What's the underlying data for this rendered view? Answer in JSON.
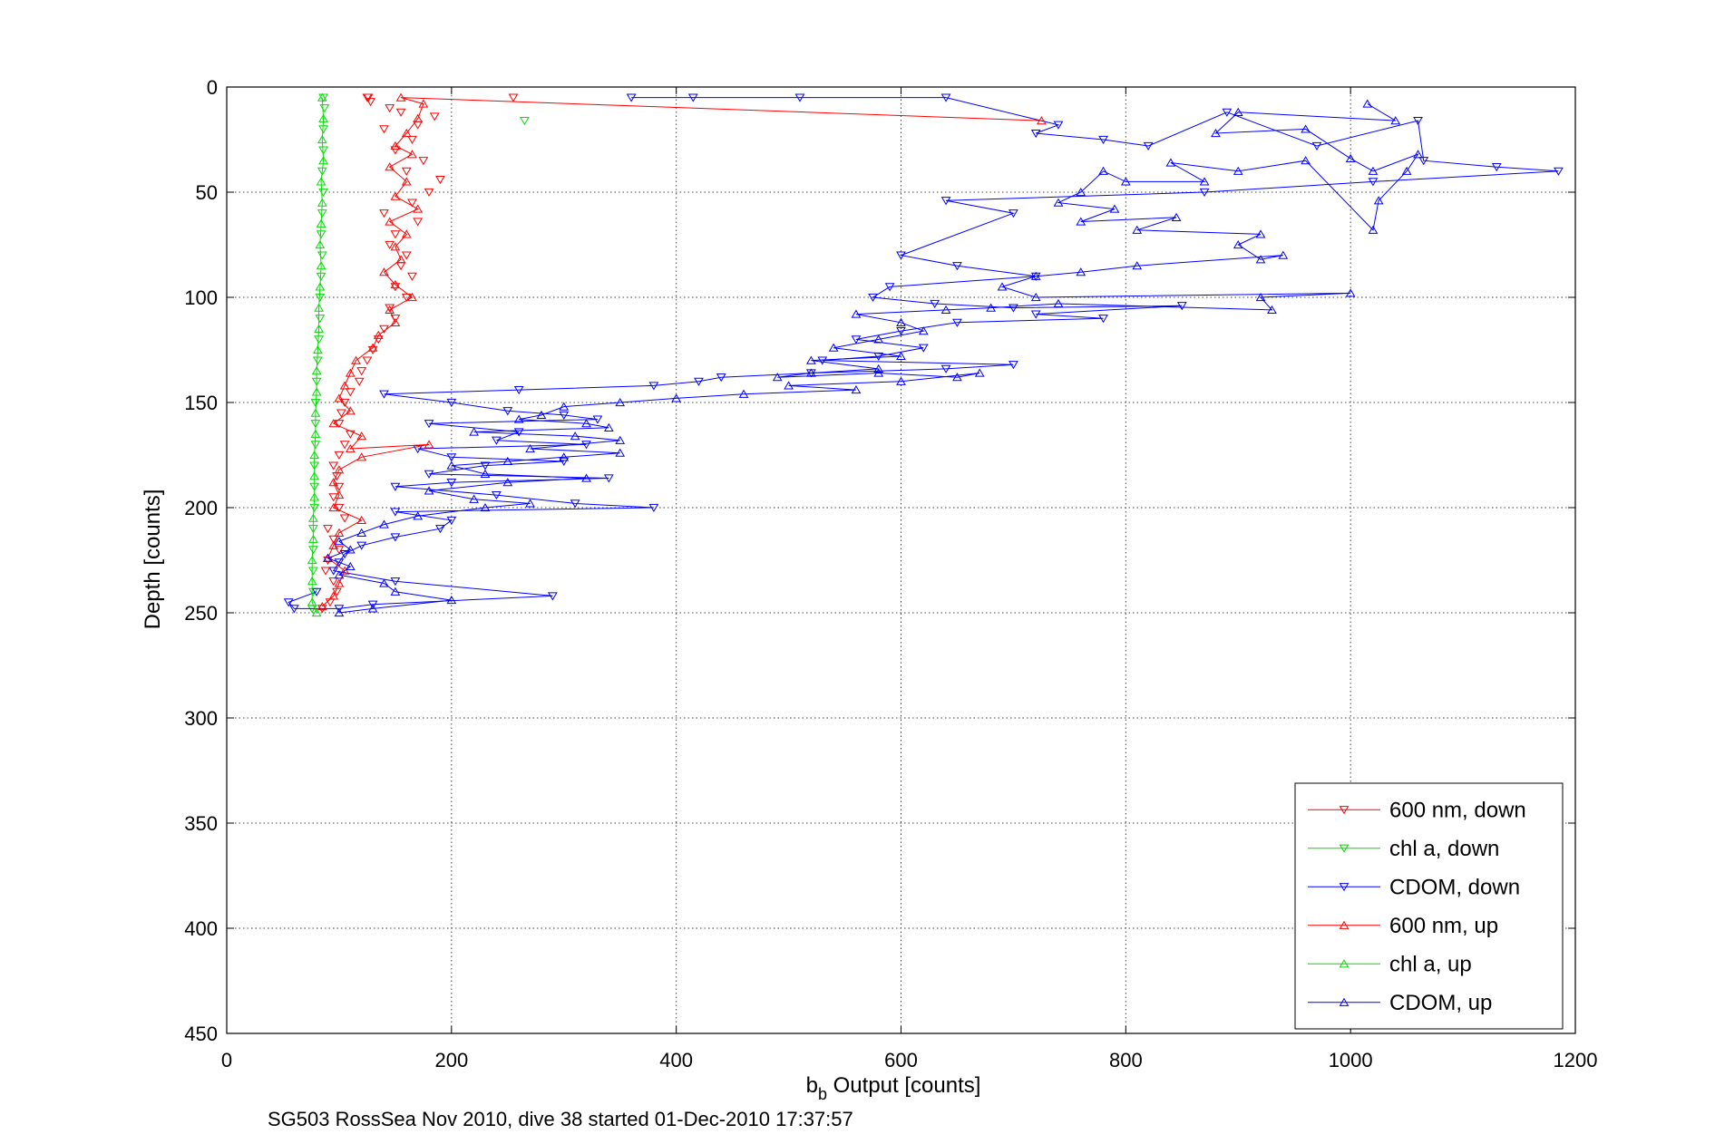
{
  "chart_data": {
    "type": "scatter",
    "title": "",
    "xlabel_main": "b",
    "xlabel_sub": "b",
    "xlabel_rest": " Output [counts]",
    "ylabel": "Depth [counts]",
    "caption": "SG503 RossSea Nov 2010, dive 38 started 01-Dec-2010 17:37:57",
    "xlim": [
      0,
      1200
    ],
    "ylim": [
      0,
      450
    ],
    "y_reversed": true,
    "grid": true,
    "grid_style": "dotted",
    "xticks": [
      "0",
      "200",
      "400",
      "600",
      "800",
      "1000",
      "1200"
    ],
    "yticks": [
      "0",
      "50",
      "100",
      "150",
      "200",
      "250",
      "300",
      "350",
      "400",
      "450"
    ],
    "legend_position": "bottom-right",
    "series": [
      {
        "name": "600 nm, down",
        "color": "#ff0000",
        "marker": "triangle-down",
        "line": false,
        "points": [
          [
            125,
            5
          ],
          [
            255,
            5
          ],
          [
            126,
            5
          ],
          [
            128,
            7
          ],
          [
            185,
            14
          ],
          [
            170,
            18
          ],
          [
            155,
            12
          ],
          [
            145,
            10
          ],
          [
            140,
            20
          ],
          [
            165,
            25
          ],
          [
            150,
            30
          ],
          [
            175,
            35
          ],
          [
            160,
            40
          ],
          [
            190,
            44
          ],
          [
            180,
            50
          ],
          [
            165,
            55
          ],
          [
            140,
            60
          ],
          [
            170,
            64
          ],
          [
            150,
            70
          ],
          [
            145,
            75
          ],
          [
            160,
            80
          ],
          [
            155,
            85
          ],
          [
            165,
            90
          ],
          [
            150,
            95
          ],
          [
            160,
            100
          ],
          [
            145,
            105
          ],
          [
            150,
            110
          ],
          [
            140,
            115
          ],
          [
            135,
            120
          ],
          [
            130,
            125
          ],
          [
            125,
            130
          ],
          [
            120,
            135
          ],
          [
            118,
            140
          ],
          [
            110,
            145
          ],
          [
            105,
            150
          ],
          [
            102,
            155
          ],
          [
            100,
            160
          ],
          [
            110,
            165
          ],
          [
            105,
            170
          ],
          [
            100,
            175
          ],
          [
            95,
            180
          ],
          [
            98,
            185
          ],
          [
            100,
            190
          ],
          [
            95,
            195
          ],
          [
            100,
            200
          ],
          [
            105,
            205
          ],
          [
            90,
            210
          ],
          [
            95,
            215
          ],
          [
            100,
            220
          ],
          [
            90,
            225
          ],
          [
            88,
            230
          ],
          [
            95,
            235
          ],
          [
            98,
            240
          ],
          [
            92,
            245
          ],
          [
            85,
            248
          ]
        ]
      },
      {
        "name": "chl a, down",
        "color": "#00dd00",
        "marker": "triangle-down",
        "line": false,
        "points": [
          [
            86,
            5
          ],
          [
            265,
            16
          ],
          [
            87,
            10
          ],
          [
            86,
            20
          ],
          [
            86,
            30
          ],
          [
            85,
            40
          ],
          [
            86,
            50
          ],
          [
            85,
            60
          ],
          [
            84,
            70
          ],
          [
            85,
            80
          ],
          [
            84,
            90
          ],
          [
            83,
            100
          ],
          [
            83,
            110
          ],
          [
            82,
            120
          ],
          [
            81,
            130
          ],
          [
            80,
            140
          ],
          [
            79,
            150
          ],
          [
            79,
            160
          ],
          [
            79,
            170
          ],
          [
            78,
            180
          ],
          [
            78,
            190
          ],
          [
            78,
            200
          ],
          [
            77,
            210
          ],
          [
            77,
            220
          ],
          [
            77,
            230
          ],
          [
            77,
            240
          ],
          [
            76,
            248
          ]
        ]
      },
      {
        "name": "CDOM, down",
        "color": "#0000ff",
        "marker": "triangle-down",
        "line": true,
        "points": [
          [
            360,
            5
          ],
          [
            415,
            5
          ],
          [
            510,
            5
          ],
          [
            640,
            5
          ],
          [
            740,
            18
          ],
          [
            720,
            22
          ],
          [
            780,
            25
          ],
          [
            820,
            28
          ],
          [
            890,
            12
          ],
          [
            970,
            28
          ],
          [
            1060,
            16
          ],
          [
            1065,
            35
          ],
          [
            1130,
            38
          ],
          [
            1185,
            40
          ],
          [
            1020,
            45
          ],
          [
            870,
            50
          ],
          [
            640,
            54
          ],
          [
            700,
            60
          ],
          [
            600,
            80
          ],
          [
            650,
            85
          ],
          [
            720,
            90
          ],
          [
            590,
            95
          ],
          [
            575,
            100
          ],
          [
            630,
            103
          ],
          [
            700,
            105
          ],
          [
            850,
            104
          ],
          [
            720,
            108
          ],
          [
            780,
            110
          ],
          [
            650,
            112
          ],
          [
            600,
            116
          ],
          [
            560,
            120
          ],
          [
            620,
            124
          ],
          [
            580,
            128
          ],
          [
            530,
            130
          ],
          [
            700,
            132
          ],
          [
            640,
            134
          ],
          [
            520,
            136
          ],
          [
            440,
            138
          ],
          [
            420,
            140
          ],
          [
            380,
            142
          ],
          [
            260,
            144
          ],
          [
            140,
            146
          ],
          [
            200,
            150
          ],
          [
            250,
            154
          ],
          [
            300,
            156
          ],
          [
            330,
            158
          ],
          [
            180,
            160
          ],
          [
            260,
            164
          ],
          [
            240,
            168
          ],
          [
            320,
            170
          ],
          [
            170,
            172
          ],
          [
            200,
            176
          ],
          [
            300,
            178
          ],
          [
            230,
            180
          ],
          [
            180,
            184
          ],
          [
            340,
            186
          ],
          [
            200,
            188
          ],
          [
            150,
            190
          ],
          [
            240,
            194
          ],
          [
            310,
            198
          ],
          [
            380,
            200
          ],
          [
            150,
            202
          ],
          [
            200,
            206
          ],
          [
            190,
            210
          ],
          [
            150,
            214
          ],
          [
            120,
            218
          ],
          [
            105,
            222
          ],
          [
            100,
            226
          ],
          [
            95,
            230
          ],
          [
            150,
            235
          ],
          [
            290,
            242
          ],
          [
            130,
            246
          ],
          [
            100,
            248
          ],
          [
            60,
            248
          ],
          [
            55,
            245
          ],
          [
            80,
            240
          ]
        ]
      },
      {
        "name": "600 nm, up",
        "color": "#ff0000",
        "marker": "triangle-up",
        "line": true,
        "points": [
          [
            725,
            16
          ],
          [
            155,
            5
          ],
          [
            175,
            8
          ],
          [
            170,
            15
          ],
          [
            160,
            22
          ],
          [
            150,
            28
          ],
          [
            165,
            32
          ],
          [
            145,
            38
          ],
          [
            160,
            45
          ],
          [
            150,
            52
          ],
          [
            170,
            58
          ],
          [
            145,
            64
          ],
          [
            160,
            70
          ],
          [
            150,
            76
          ],
          [
            155,
            82
          ],
          [
            140,
            88
          ],
          [
            150,
            94
          ],
          [
            165,
            100
          ],
          [
            145,
            106
          ],
          [
            150,
            112
          ],
          [
            135,
            118
          ],
          [
            130,
            124
          ],
          [
            115,
            130
          ],
          [
            110,
            136
          ],
          [
            105,
            142
          ],
          [
            100,
            148
          ],
          [
            110,
            154
          ],
          [
            95,
            160
          ],
          [
            120,
            166
          ],
          [
            110,
            172
          ],
          [
            180,
            170
          ],
          [
            120,
            176
          ],
          [
            100,
            182
          ],
          [
            95,
            188
          ],
          [
            100,
            194
          ],
          [
            95,
            200
          ],
          [
            120,
            206
          ],
          [
            100,
            212
          ],
          [
            95,
            218
          ],
          [
            90,
            224
          ],
          [
            105,
            230
          ],
          [
            100,
            236
          ],
          [
            95,
            242
          ],
          [
            85,
            247
          ]
        ]
      },
      {
        "name": "chl a, up",
        "color": "#00dd00",
        "marker": "triangle-up",
        "line": true,
        "points": [
          [
            85,
            5
          ],
          [
            86,
            15
          ],
          [
            85,
            25
          ],
          [
            86,
            35
          ],
          [
            84,
            45
          ],
          [
            85,
            55
          ],
          [
            84,
            65
          ],
          [
            83,
            75
          ],
          [
            84,
            85
          ],
          [
            83,
            95
          ],
          [
            82,
            105
          ],
          [
            82,
            115
          ],
          [
            81,
            125
          ],
          [
            80,
            135
          ],
          [
            80,
            145
          ],
          [
            79,
            155
          ],
          [
            79,
            165
          ],
          [
            78,
            175
          ],
          [
            78,
            185
          ],
          [
            78,
            195
          ],
          [
            77,
            205
          ],
          [
            77,
            215
          ],
          [
            76,
            225
          ],
          [
            76,
            235
          ],
          [
            76,
            245
          ],
          [
            80,
            250
          ]
        ]
      },
      {
        "name": "CDOM, up",
        "color": "#0000ff",
        "marker": "triangle-up",
        "line": true,
        "points": [
          [
            1015,
            8
          ],
          [
            1040,
            16
          ],
          [
            900,
            12
          ],
          [
            880,
            22
          ],
          [
            960,
            20
          ],
          [
            1000,
            34
          ],
          [
            1020,
            40
          ],
          [
            1060,
            32
          ],
          [
            1050,
            40
          ],
          [
            1025,
            54
          ],
          [
            1020,
            68
          ],
          [
            960,
            35
          ],
          [
            900,
            40
          ],
          [
            840,
            36
          ],
          [
            870,
            45
          ],
          [
            800,
            45
          ],
          [
            780,
            40
          ],
          [
            760,
            50
          ],
          [
            740,
            55
          ],
          [
            790,
            58
          ],
          [
            760,
            64
          ],
          [
            845,
            62
          ],
          [
            810,
            68
          ],
          [
            920,
            70
          ],
          [
            900,
            75
          ],
          [
            920,
            82
          ],
          [
            940,
            80
          ],
          [
            810,
            85
          ],
          [
            760,
            88
          ],
          [
            720,
            90
          ],
          [
            690,
            95
          ],
          [
            720,
            100
          ],
          [
            1000,
            98
          ],
          [
            920,
            100
          ],
          [
            930,
            106
          ],
          [
            740,
            103
          ],
          [
            680,
            105
          ],
          [
            640,
            106
          ],
          [
            560,
            108
          ],
          [
            600,
            112
          ],
          [
            620,
            116
          ],
          [
            580,
            120
          ],
          [
            540,
            124
          ],
          [
            600,
            128
          ],
          [
            520,
            130
          ],
          [
            580,
            134
          ],
          [
            520,
            136
          ],
          [
            490,
            138
          ],
          [
            580,
            136
          ],
          [
            650,
            138
          ],
          [
            670,
            136
          ],
          [
            600,
            140
          ],
          [
            500,
            142
          ],
          [
            560,
            144
          ],
          [
            460,
            146
          ],
          [
            400,
            148
          ],
          [
            350,
            150
          ],
          [
            300,
            152
          ],
          [
            280,
            156
          ],
          [
            260,
            158
          ],
          [
            320,
            160
          ],
          [
            340,
            162
          ],
          [
            220,
            164
          ],
          [
            310,
            166
          ],
          [
            350,
            168
          ],
          [
            270,
            172
          ],
          [
            350,
            174
          ],
          [
            300,
            176
          ],
          [
            250,
            178
          ],
          [
            200,
            180
          ],
          [
            230,
            184
          ],
          [
            320,
            186
          ],
          [
            250,
            188
          ],
          [
            180,
            192
          ],
          [
            220,
            196
          ],
          [
            270,
            198
          ],
          [
            230,
            200
          ],
          [
            170,
            204
          ],
          [
            140,
            208
          ],
          [
            120,
            212
          ],
          [
            100,
            216
          ],
          [
            110,
            220
          ],
          [
            90,
            224
          ],
          [
            110,
            228
          ],
          [
            100,
            232
          ],
          [
            140,
            236
          ],
          [
            150,
            240
          ],
          [
            200,
            244
          ],
          [
            130,
            248
          ],
          [
            100,
            250
          ]
        ]
      }
    ]
  }
}
